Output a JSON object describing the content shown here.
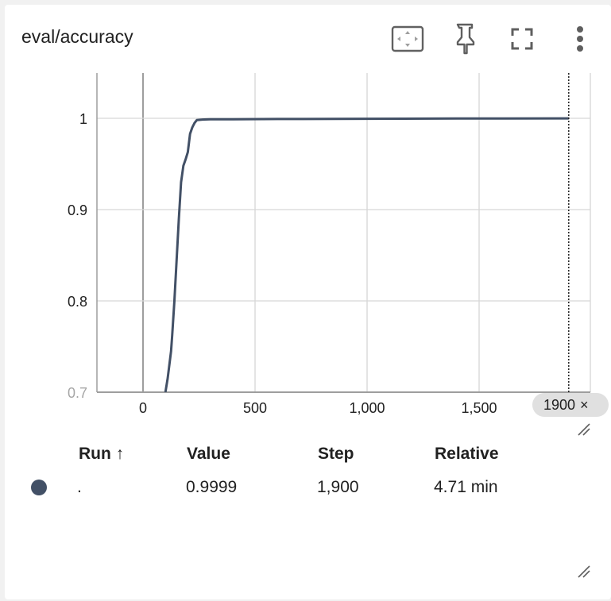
{
  "card": {
    "title": "eval/accuracy",
    "tools": [
      "fit-domain-icon",
      "pin-icon",
      "fullscreen-icon",
      "more-vert-icon"
    ]
  },
  "chart_data": {
    "type": "line",
    "title": "eval/accuracy",
    "xlabel": "",
    "ylabel": "",
    "xlim": [
      -200,
      2000
    ],
    "ylim": [
      0.7,
      1.05
    ],
    "x_ticks": [
      0,
      500,
      1000,
      1500
    ],
    "x_tick_labels": [
      "0",
      "500",
      "1,000",
      "1,500"
    ],
    "y_ticks": [
      0.7,
      0.8,
      0.9,
      1.0
    ],
    "y_tick_labels": [
      "0.7",
      "0.8",
      "0.9",
      "1"
    ],
    "grid": true,
    "series": [
      {
        "name": ".",
        "color": "#425066",
        "x": [
          100,
          110,
          125,
          130,
          140,
          150,
          160,
          170,
          180,
          190,
          200,
          210,
          220,
          230,
          240,
          260,
          300,
          400,
          600,
          1000,
          1400,
          1900
        ],
        "y": [
          0.7,
          0.715,
          0.745,
          0.762,
          0.8,
          0.845,
          0.89,
          0.93,
          0.948,
          0.955,
          0.963,
          0.983,
          0.99,
          0.995,
          0.998,
          0.9985,
          0.999,
          0.999,
          0.9992,
          0.9995,
          0.9997,
          0.9999
        ]
      }
    ],
    "cursor_step": 1900,
    "cursor_step_label": "1900",
    "cursor_close": "×"
  },
  "table": {
    "headers": {
      "run": "Run ↑",
      "value": "Value",
      "step": "Step",
      "relative": "Relative"
    },
    "rows": [
      {
        "color": "#425066",
        "run": ".",
        "value": "0.9999",
        "step": "1,900",
        "relative": "4.71 min"
      }
    ]
  }
}
